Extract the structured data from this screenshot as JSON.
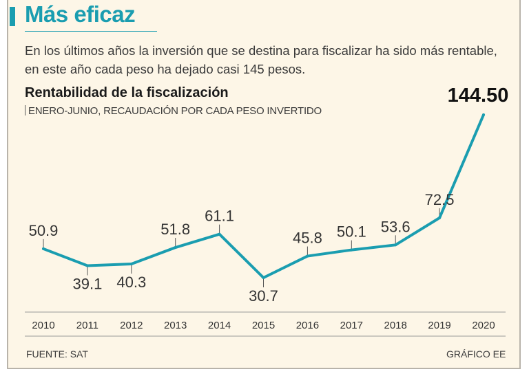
{
  "headline": "Más eficaz",
  "intro": "En los últimos años la inversión que se destina para fiscalizar ha sido más rentable, en este año cada peso ha dejado casi 145 pesos.",
  "footer": {
    "source": "FUENTE: SAT",
    "credit": "GRÁFICO EE"
  },
  "colors": {
    "line": "#1a9db0",
    "text": "#333333",
    "background": "#fdf6e7"
  },
  "chart_data": {
    "type": "line",
    "title": "Rentabilidad de la fiscalización",
    "subtitle": "ENERO-JUNIO, RECAUDACIÓN POR CADA PESO INVERTIDO",
    "categories": [
      "2010",
      "2011",
      "2012",
      "2013",
      "2014",
      "2015",
      "2016",
      "2017",
      "2018",
      "2019",
      "2020"
    ],
    "series": [
      {
        "name": "Recaudación por cada peso invertido",
        "values": [
          50.9,
          39.1,
          40.3,
          51.8,
          61.1,
          30.7,
          45.8,
          50.1,
          53.6,
          72.5,
          144.5
        ]
      }
    ],
    "data_labels": [
      "50.9",
      "39.1",
      "40.3",
      "51.8",
      "61.1",
      "30.7",
      "45.8",
      "50.1",
      "53.6",
      "72.5",
      "144.50"
    ],
    "xlabel": "",
    "ylabel": "",
    "ylim": [
      0,
      150
    ],
    "grid": false,
    "legend": "none"
  }
}
